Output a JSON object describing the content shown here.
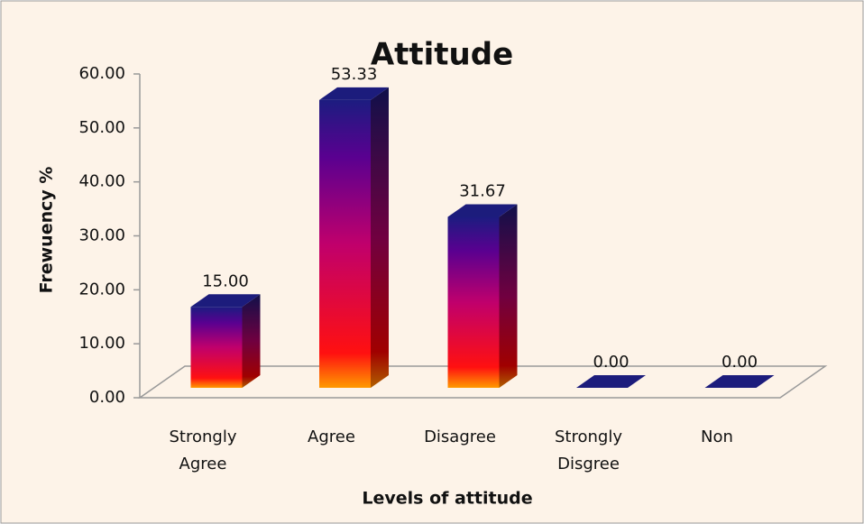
{
  "chart_data": {
    "type": "bar3d",
    "title": "Attitude",
    "x_label": "Levels of attitude",
    "y_label": "Frewuency %",
    "categories": [
      "Strongly Agree",
      "Agree",
      "Disagree",
      "Strongly Disgree",
      "Non"
    ],
    "values": [
      15,
      53.33,
      31.67,
      0,
      0
    ],
    "value_labels": [
      "15.00",
      "53.33",
      "31.67",
      "0.00",
      "0.00"
    ],
    "color": "#1c1c7c",
    "ylim": [
      0,
      60
    ],
    "yticks": [
      {
        "value": 0,
        "label": "0.00"
      },
      {
        "value": 10,
        "label": "10.00"
      },
      {
        "value": 20,
        "label": "20.00"
      },
      {
        "value": 30,
        "label": "30.00"
      },
      {
        "value": 40,
        "label": "40.00"
      },
      {
        "value": 50,
        "label": "50.00"
      },
      {
        "value": 60,
        "label": "60.00"
      }
    ]
  }
}
